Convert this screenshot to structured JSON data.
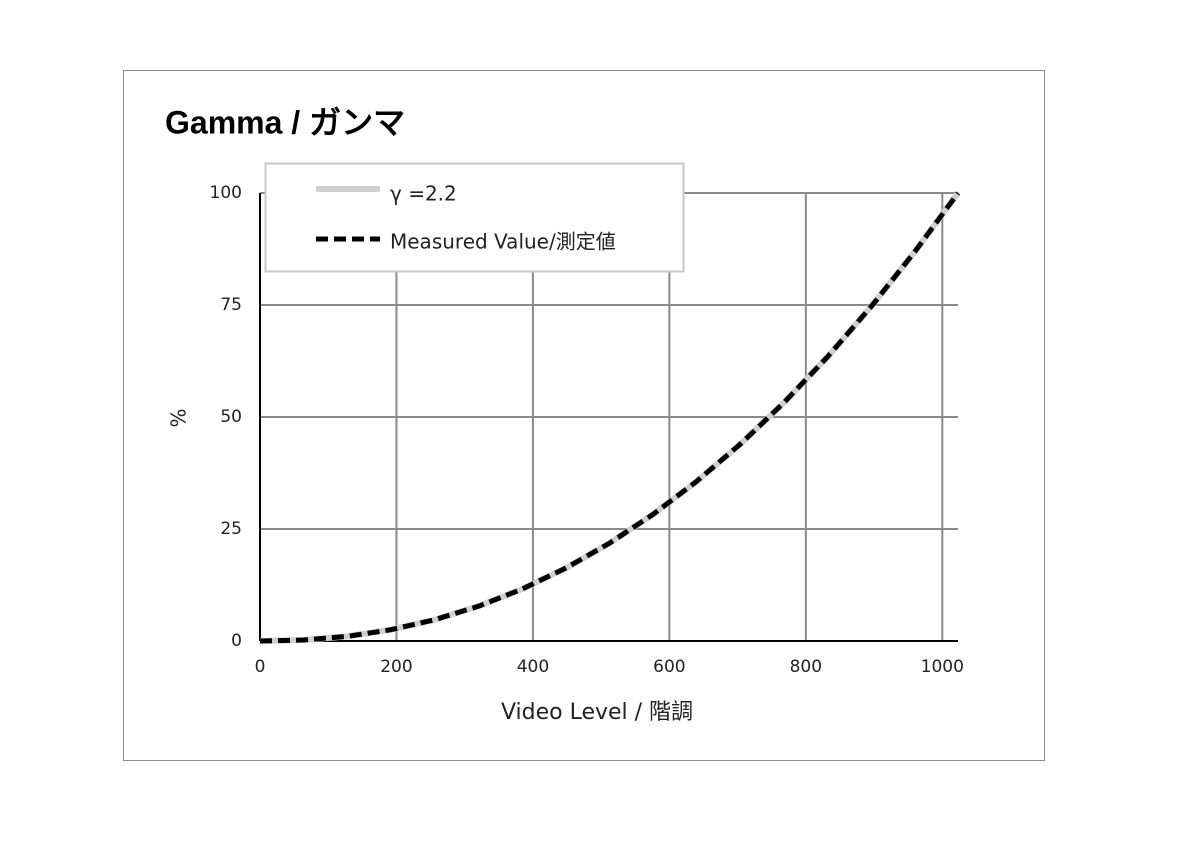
{
  "chart_data": {
    "type": "line",
    "title": "Gamma / ガンマ",
    "x_label": "Video Level / 階調",
    "y_label": "%",
    "x": [
      0,
      64,
      128,
      192,
      256,
      320,
      384,
      448,
      512,
      576,
      640,
      704,
      768,
      832,
      896,
      960,
      1023
    ],
    "series": [
      {
        "name": "γ =2.2",
        "color": "#d0d0d0",
        "dash": false,
        "values": [
          0,
          0.22,
          1.03,
          2.52,
          4.75,
          7.75,
          11.58,
          16.26,
          21.81,
          28.26,
          35.64,
          43.95,
          53.22,
          63.46,
          74.7,
          86.95,
          100
        ]
      },
      {
        "name": "Measured Value/測定値",
        "color": "#000000",
        "dash": true,
        "values": [
          0,
          0.22,
          1.03,
          2.52,
          4.75,
          7.75,
          11.58,
          16.26,
          21.81,
          28.26,
          35.64,
          43.95,
          53.22,
          63.46,
          74.7,
          86.95,
          100
        ]
      }
    ],
    "xlim": [
      0,
      1023
    ],
    "ylim": [
      0,
      100
    ],
    "xticks": [
      0,
      200,
      400,
      600,
      800,
      1000
    ],
    "yticks": [
      0,
      25,
      50,
      75,
      100
    ],
    "grid": true,
    "legend": "upper left"
  }
}
